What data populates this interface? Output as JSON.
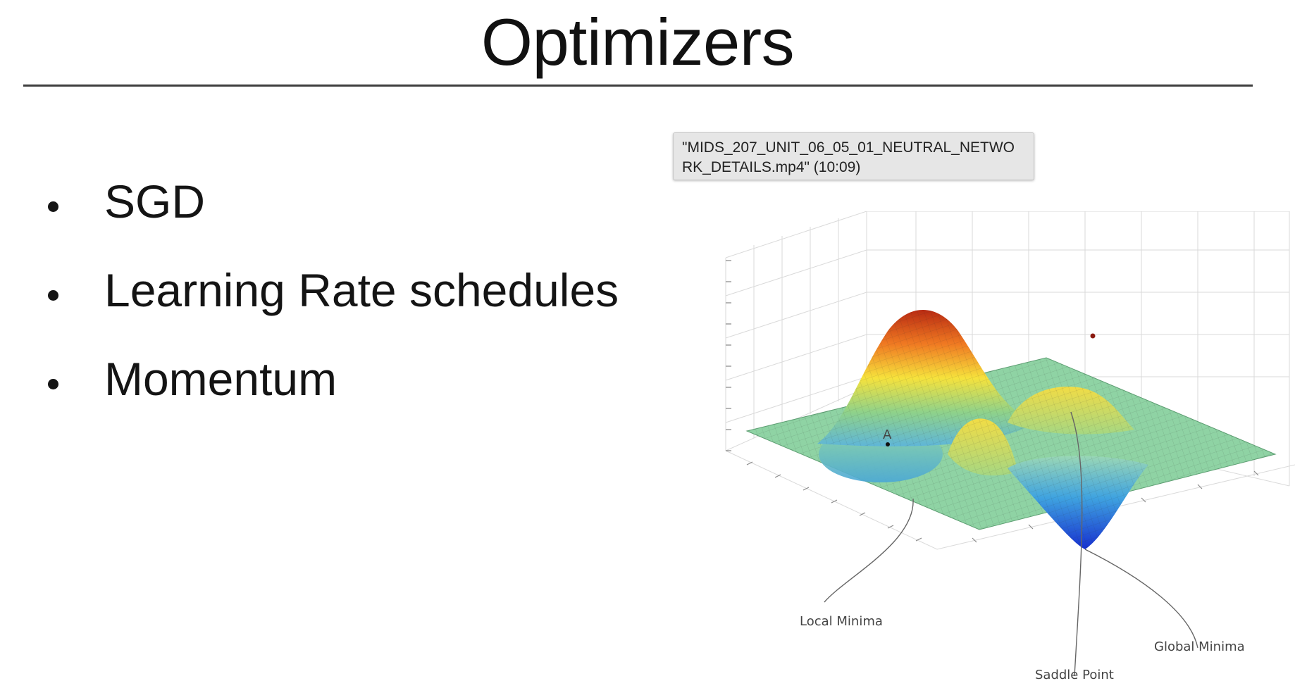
{
  "slide": {
    "title": "Optimizers",
    "bullets": [
      {
        "text": "SGD"
      },
      {
        "text": "Learning Rate schedules"
      },
      {
        "text": "Momentum"
      }
    ]
  },
  "tooltip": {
    "text": "\"MIDS_207_UNIT_06_05_01_NEUTRAL_NETWORK_DETAILS.mp4\" (10:09)"
  },
  "figure": {
    "point_label": "A",
    "annotations": {
      "local_minima": "Local Minima",
      "saddle_point": "Saddle Point",
      "global_minima": "Global Minima"
    }
  },
  "colors": {
    "plane": "#8fd3a4",
    "peak": "#d93a1c",
    "valley": "#1a3fd6",
    "rule": "#3e3e3e"
  }
}
